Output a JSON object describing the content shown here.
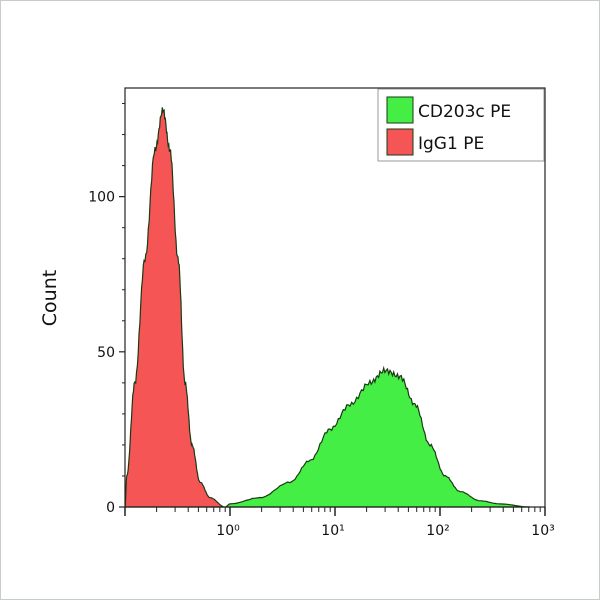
{
  "chart_data": {
    "type": "area",
    "title": "",
    "xlabel": "",
    "ylabel": "Count",
    "xscale": "log",
    "xlim": [
      0.1,
      1000
    ],
    "ylim": [
      0,
      135
    ],
    "yticks": [
      0,
      50,
      100
    ],
    "xticks": [
      1,
      10,
      100,
      1000
    ],
    "xtick_labels": [
      "10⁰",
      "10¹",
      "10²",
      "10³"
    ],
    "grid": false,
    "legend_position": "top-right",
    "series": [
      {
        "name": "CD203c PE",
        "color": "#44ee44",
        "x": [
          0.9,
          1.0,
          1.93,
          3.73,
          5.78,
          8.96,
          13.9,
          21.5,
          29.9,
          41.6,
          57.8,
          80.3,
          112,
          155,
          240,
          372,
          720
        ],
        "y": [
          0,
          1,
          3,
          8,
          15,
          25,
          33,
          40,
          44,
          42,
          33,
          20,
          10,
          5,
          2,
          1,
          0
        ]
      },
      {
        "name": "IgG1 PE",
        "color": "#f55555",
        "x": [
          0.1,
          0.104,
          0.124,
          0.155,
          0.193,
          0.23,
          0.268,
          0.32,
          0.373,
          0.434,
          0.518,
          0.646,
          0.896
        ],
        "y": [
          0,
          10,
          40,
          80,
          115,
          128,
          115,
          80,
          40,
          20,
          8,
          3,
          0
        ]
      }
    ]
  }
}
